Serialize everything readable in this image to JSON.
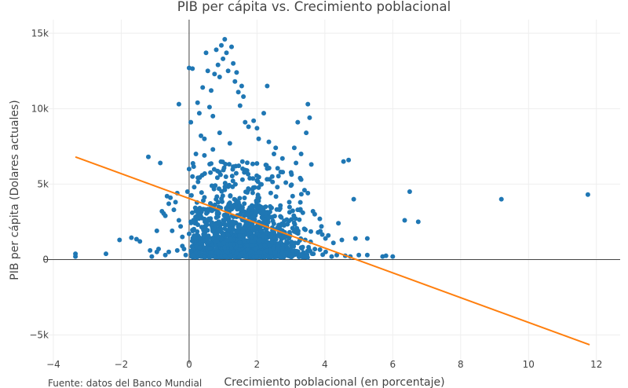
{
  "chart_data": {
    "type": "scatter",
    "title": "PIB per cápita vs. Crecimiento poblacional",
    "xlabel": "Crecimiento poblacional (en porcentaje)",
    "ylabel": "PIB per cápita (Dolares actuales)",
    "source_note": "Fuente: datos del Banco Mundial",
    "xlim": [
      -4.3,
      12.7
    ],
    "ylim": [
      -6900,
      15900
    ],
    "x_ticks": [
      -4,
      -2,
      0,
      2,
      4,
      6,
      8,
      10,
      12
    ],
    "x_tick_labels": [
      "−4",
      "−2",
      "0",
      "2",
      "4",
      "6",
      "8",
      "10",
      "12"
    ],
    "y_ticks": [
      -5000,
      0,
      5000,
      10000,
      15000
    ],
    "y_tick_labels": [
      "−5k",
      "0",
      "5k",
      "10k",
      "15k"
    ],
    "grid": true,
    "zero_lines": true,
    "series": [
      {
        "type": "scatter",
        "color": "#1f77b4",
        "points": [
          [
            -3.35,
            380
          ],
          [
            -3.35,
            200
          ],
          [
            -2.45,
            380
          ],
          [
            -2.05,
            1300
          ],
          [
            -1.7,
            1450
          ],
          [
            -1.55,
            1350
          ],
          [
            -1.45,
            1200
          ],
          [
            -1.2,
            6800
          ],
          [
            -1.15,
            600
          ],
          [
            -1.1,
            200
          ],
          [
            -0.95,
            1900
          ],
          [
            -0.9,
            700
          ],
          [
            -0.85,
            6400
          ],
          [
            -0.8,
            3200
          ],
          [
            -0.75,
            3050
          ],
          [
            -0.7,
            2900
          ],
          [
            -0.65,
            4200
          ],
          [
            -0.6,
            3700
          ],
          [
            -0.55,
            4100
          ],
          [
            -0.5,
            1900
          ],
          [
            -0.45,
            3300
          ],
          [
            -0.4,
            3800
          ],
          [
            -0.35,
            4400
          ],
          [
            -0.3,
            2600
          ],
          [
            -0.25,
            2200
          ],
          [
            -0.2,
            1500
          ],
          [
            -0.15,
            700
          ],
          [
            -0.1,
            300
          ],
          [
            -0.05,
            4500
          ],
          [
            -0.3,
            10300
          ],
          [
            -0.6,
            500
          ],
          [
            -0.7,
            300
          ],
          [
            -0.95,
            500
          ],
          [
            -0.2,
            900
          ],
          [
            -0.35,
            600
          ],
          [
            0.0,
            12700
          ],
          [
            0.1,
            12650
          ],
          [
            0.05,
            9100
          ],
          [
            0.0,
            6000
          ],
          [
            0.1,
            5500
          ],
          [
            0.15,
            4800
          ],
          [
            0.2,
            7000
          ],
          [
            0.05,
            2500
          ],
          [
            0.0,
            1700
          ],
          [
            0.1,
            300
          ],
          [
            0.25,
            10400
          ],
          [
            0.3,
            9700
          ],
          [
            0.35,
            8200
          ],
          [
            0.4,
            11400
          ],
          [
            0.45,
            8000
          ],
          [
            0.55,
            12500
          ],
          [
            0.5,
            13700
          ],
          [
            0.6,
            10100
          ],
          [
            0.65,
            11200
          ],
          [
            0.7,
            9500
          ],
          [
            0.75,
            12300
          ],
          [
            0.8,
            13900
          ],
          [
            0.85,
            12900
          ],
          [
            0.9,
            12100
          ],
          [
            0.95,
            14200
          ],
          [
            1.05,
            14600
          ],
          [
            1.0,
            13300
          ],
          [
            1.1,
            13700
          ],
          [
            1.15,
            12500
          ],
          [
            1.25,
            14100
          ],
          [
            1.3,
            13000
          ],
          [
            1.35,
            11800
          ],
          [
            1.4,
            12400
          ],
          [
            1.45,
            11100
          ],
          [
            1.55,
            11500
          ],
          [
            1.5,
            10200
          ],
          [
            1.6,
            10800
          ],
          [
            1.65,
            9100
          ],
          [
            1.75,
            8800
          ],
          [
            2.3,
            11500
          ],
          [
            2.2,
            9700
          ],
          [
            1.9,
            9200
          ],
          [
            2.0,
            8700
          ],
          [
            2.05,
            8000
          ],
          [
            2.35,
            7800
          ],
          [
            2.55,
            7400
          ],
          [
            2.5,
            7000
          ],
          [
            2.75,
            6700
          ],
          [
            3.2,
            9100
          ],
          [
            3.5,
            10300
          ],
          [
            3.55,
            9400
          ],
          [
            3.45,
            8400
          ],
          [
            3.1,
            7400
          ],
          [
            3.3,
            7000
          ],
          [
            3.15,
            6400
          ],
          [
            3.6,
            6300
          ],
          [
            3.5,
            4400
          ],
          [
            3.2,
            3300
          ],
          [
            3.65,
            3200
          ],
          [
            3.8,
            1800
          ],
          [
            3.9,
            2200
          ],
          [
            4.1,
            1600
          ],
          [
            4.25,
            1100
          ],
          [
            4.4,
            2400
          ],
          [
            4.5,
            1300
          ],
          [
            4.55,
            6500
          ],
          [
            4.7,
            6600
          ],
          [
            4.85,
            4000
          ],
          [
            4.9,
            1400
          ],
          [
            5.25,
            1400
          ],
          [
            5.0,
            300
          ],
          [
            5.25,
            300
          ],
          [
            5.7,
            200
          ],
          [
            5.8,
            250
          ],
          [
            6.0,
            200
          ],
          [
            6.35,
            2600
          ],
          [
            6.5,
            4500
          ],
          [
            6.75,
            2500
          ],
          [
            9.2,
            4000
          ],
          [
            11.75,
            4300
          ],
          [
            4.35,
            300
          ],
          [
            4.2,
            200
          ],
          [
            4.6,
            250
          ],
          [
            4.75,
            200
          ],
          [
            0.9,
            8400
          ],
          [
            1.2,
            7700
          ],
          [
            0.7,
            7300
          ],
          [
            0.45,
            6900
          ],
          [
            2.7,
            5800
          ],
          [
            2.85,
            5100
          ],
          [
            3.0,
            4900
          ],
          [
            3.3,
            5300
          ],
          [
            3.4,
            4600
          ],
          [
            3.05,
            4200
          ],
          [
            2.95,
            3800
          ],
          [
            3.7,
            3000
          ],
          [
            3.85,
            2700
          ],
          [
            3.35,
            3100
          ],
          [
            2.45,
            5500
          ],
          [
            2.6,
            4800
          ]
        ],
        "dense_cluster": {
          "x_range": [
            0.05,
            4.3
          ],
          "y_range": [
            0,
            6500
          ],
          "count": 1500,
          "note": "Densely overlapping points near the origin; peak density at x ≈ 1–2.5, y ≈ 0–3000"
        }
      },
      {
        "type": "line",
        "color": "#ff7f0e",
        "x": [
          -3.35,
          11.8
        ],
        "y": [
          6800,
          -5650
        ]
      }
    ]
  }
}
